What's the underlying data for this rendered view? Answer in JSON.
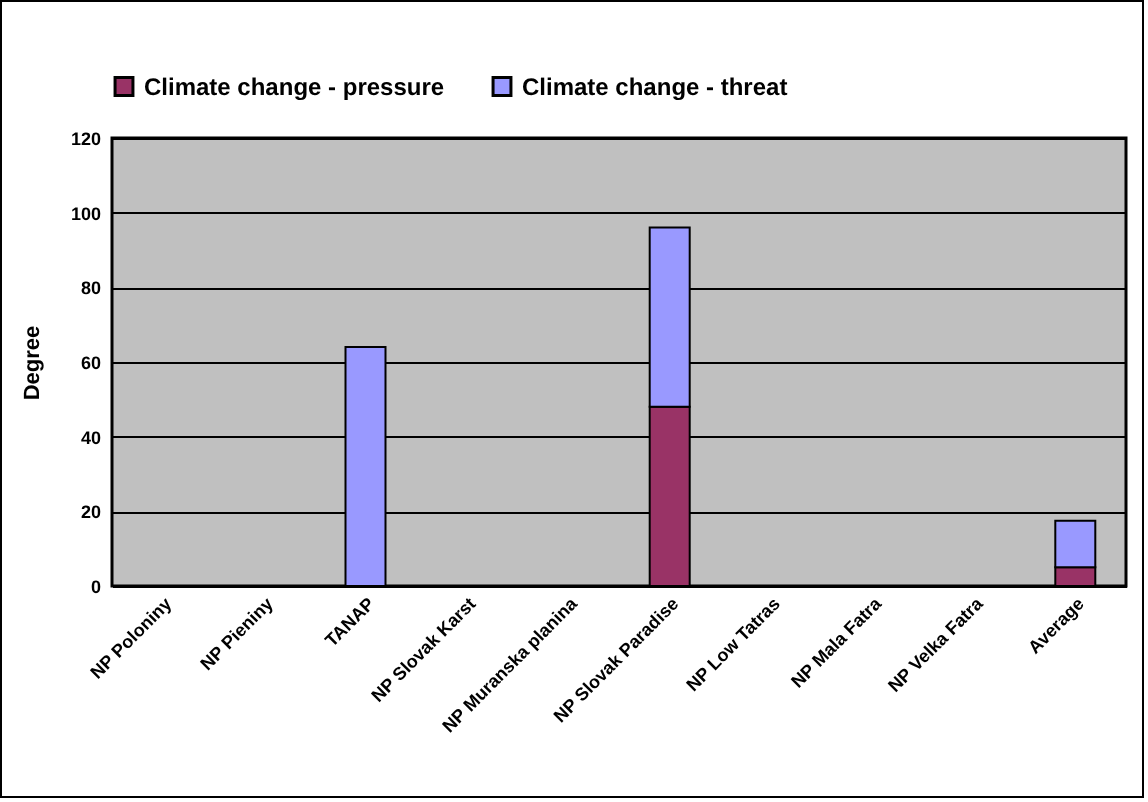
{
  "chart_data": {
    "type": "bar",
    "stacked": true,
    "ylabel": "Degree",
    "categories": [
      "NP Poloniny",
      "NP Pieniny",
      "TANAP",
      "NP Slovak Karst",
      "NP Muranska planina",
      "NP Slovak Paradise",
      "NP Low Tatras",
      "NP Mala Fatra",
      "NP Velka Fatra",
      "Average"
    ],
    "series": [
      {
        "name": "Climate change - pressure",
        "color": "#993366",
        "values": [
          0,
          0,
          0,
          0,
          0,
          48,
          0,
          0,
          0,
          5
        ]
      },
      {
        "name": "Climate change - threat",
        "color": "#9999ff",
        "values": [
          0,
          0,
          64,
          0,
          0,
          48,
          0,
          0,
          0,
          12.5
        ]
      }
    ],
    "ylim": [
      0,
      120
    ],
    "yticks": [
      0,
      20,
      40,
      60,
      80,
      100,
      120
    ],
    "grid": "y",
    "legend": "top"
  }
}
